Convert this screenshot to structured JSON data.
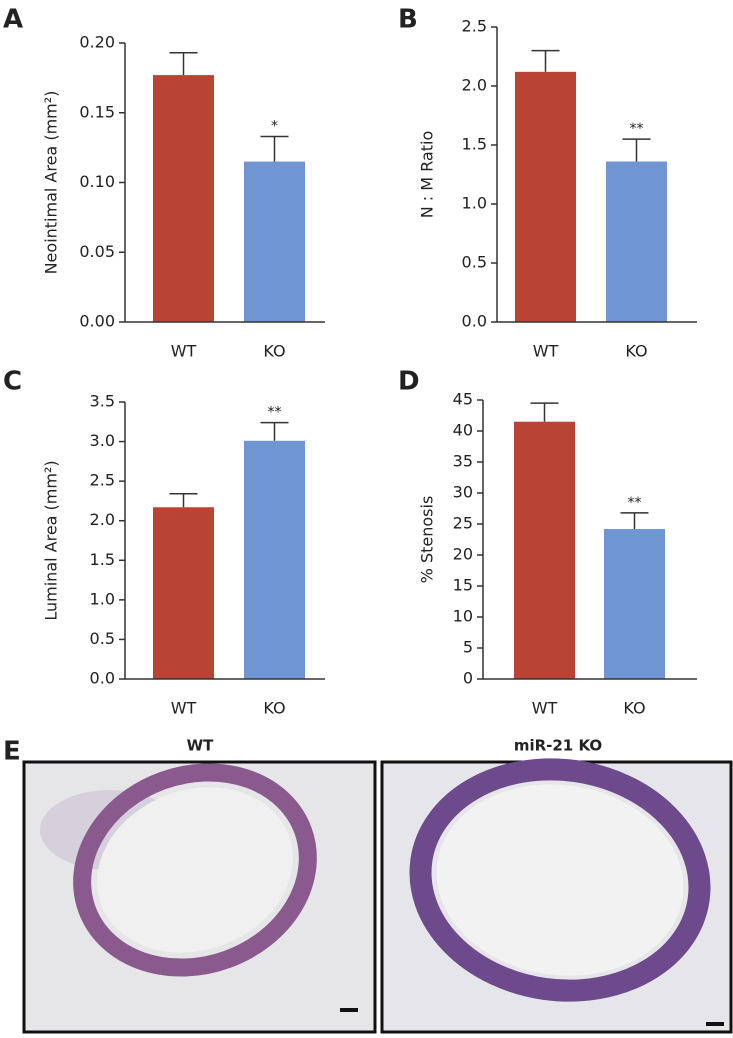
{
  "chart_data": [
    {
      "type": "bar",
      "panel": "A",
      "ylabel": "Neointimal Area (mm²)",
      "categories": [
        "WT",
        "KO"
      ],
      "values": [
        0.177,
        0.115
      ],
      "errors": [
        0.016,
        0.018
      ],
      "annotations": [
        null,
        "*"
      ],
      "colors": [
        "#b94434",
        "#6f95d2"
      ],
      "ylim": [
        0,
        0.2
      ],
      "yticks": [
        {
          "value": 0,
          "label": "0.00"
        },
        0.05,
        {
          "value": 0.1,
          "label": "0.10"
        },
        0.15,
        {
          "value": 0.2,
          "label": "0.20"
        }
      ]
    },
    {
      "type": "bar",
      "panel": "B",
      "ylabel": "N : M Ratio",
      "categories": [
        "WT",
        "KO"
      ],
      "values": [
        2.12,
        1.36
      ],
      "errors": [
        0.18,
        0.19
      ],
      "annotations": [
        null,
        "**"
      ],
      "colors": [
        "#b94434",
        "#6f95d2"
      ],
      "ylim": [
        0,
        2.5
      ],
      "yticks": [
        {
          "value": 0,
          "label": "0.0"
        },
        0.5,
        {
          "value": 1,
          "label": "1.0"
        },
        1.5,
        {
          "value": 2,
          "label": "2.0"
        },
        2.5
      ]
    },
    {
      "type": "bar",
      "panel": "C",
      "ylabel": "Luminal Area (mm²)",
      "categories": [
        "WT",
        "KO"
      ],
      "values": [
        2.17,
        3.01
      ],
      "errors": [
        0.17,
        0.23
      ],
      "annotations": [
        null,
        "**"
      ],
      "colors": [
        "#b94434",
        "#6f95d2"
      ],
      "ylim": [
        0,
        3.5
      ],
      "yticks": [
        {
          "value": 0,
          "label": "0.0"
        },
        0.5,
        {
          "value": 1,
          "label": "1.0"
        },
        1.5,
        {
          "value": 2,
          "label": "2.0"
        },
        2.5,
        {
          "value": 3,
          "label": "3.0"
        },
        3.5
      ]
    },
    {
      "type": "bar",
      "panel": "D",
      "ylabel": "% Stenosis",
      "categories": [
        "WT",
        "KO"
      ],
      "values": [
        41.5,
        24.2
      ],
      "errors": [
        3.0,
        2.6
      ],
      "annotations": [
        null,
        "**"
      ],
      "colors": [
        "#b94434",
        "#6f95d2"
      ],
      "ylim": [
        0,
        45
      ],
      "yticks": [
        0,
        5,
        10,
        15,
        20,
        25,
        30,
        35,
        40,
        45
      ]
    }
  ],
  "panel_e": {
    "label": "E",
    "titles": [
      "WT",
      "miR-21 KO"
    ]
  }
}
